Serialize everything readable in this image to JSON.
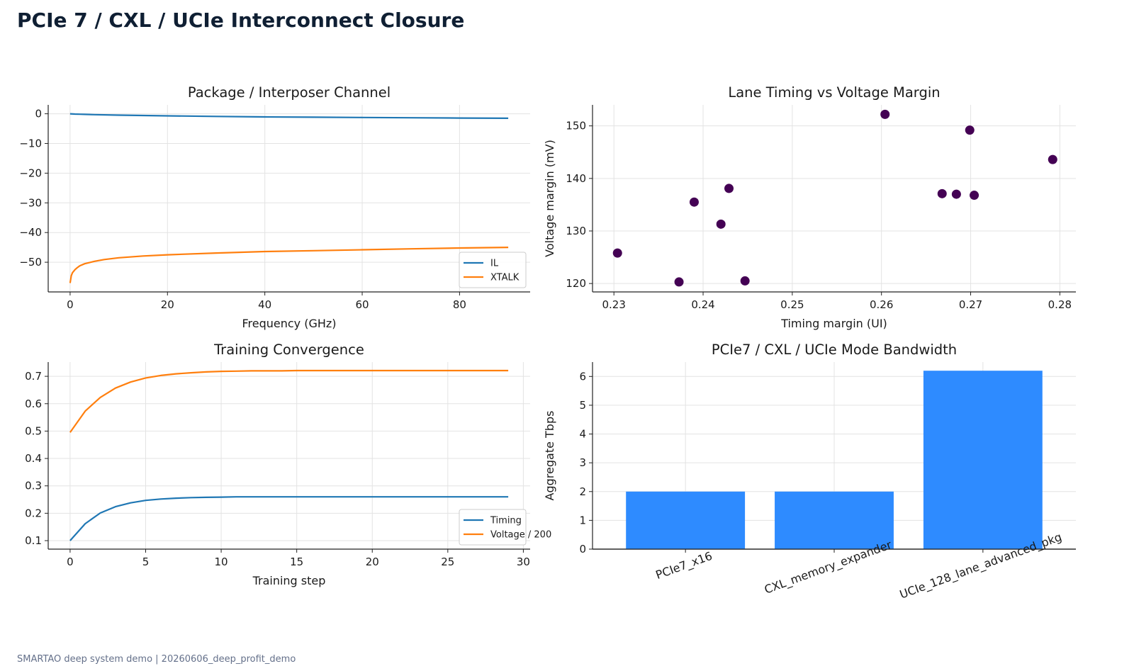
{
  "page": {
    "title": "PCIe 7 / CXL / UCIe Interconnect Closure",
    "footer": "SMARTAO deep system demo | 20260606_deep_profit_demo"
  },
  "colors": {
    "blue": "#1f77b4",
    "orange": "#ff7f0e",
    "purple": "#440154",
    "bar": "#2e8bff"
  },
  "chart_data": [
    {
      "id": "channel",
      "type": "line",
      "title": "Package / Interposer Channel",
      "xlabel": "Frequency (GHz)",
      "ylabel": "",
      "xlim": [
        -4.5,
        94.5
      ],
      "ylim": [
        -60.0,
        3.0
      ],
      "xticks": [
        0,
        20,
        40,
        60,
        80
      ],
      "yticks": [
        0,
        -10,
        -20,
        -30,
        -40,
        -50
      ],
      "grid": true,
      "legend": "bottom-right",
      "series": [
        {
          "name": "IL",
          "color": "#1f77b4",
          "x": [
            0,
            1,
            2,
            3,
            5,
            10,
            20,
            30,
            40,
            50,
            60,
            70,
            80,
            90
          ],
          "y": [
            0,
            -0.1,
            -0.15,
            -0.2,
            -0.3,
            -0.45,
            -0.7,
            -0.9,
            -1.05,
            -1.15,
            -1.25,
            -1.35,
            -1.45,
            -1.5
          ]
        },
        {
          "name": "XTALK",
          "color": "#ff7f0e",
          "x": [
            0,
            0.25,
            0.5,
            1,
            1.5,
            2,
            3,
            5,
            7,
            10,
            15,
            20,
            30,
            40,
            50,
            60,
            70,
            80,
            90
          ],
          "y": [
            -57,
            -54.5,
            -53.5,
            -52.5,
            -51.8,
            -51.2,
            -50.5,
            -49.7,
            -49.1,
            -48.5,
            -47.9,
            -47.5,
            -46.9,
            -46.4,
            -46.1,
            -45.8,
            -45.5,
            -45.2,
            -45.0
          ]
        }
      ]
    },
    {
      "id": "margin",
      "type": "scatter",
      "title": "Lane Timing vs Voltage Margin",
      "xlabel": "Timing margin (UI)",
      "ylabel": "Voltage margin (mV)",
      "xlim": [
        0.2276,
        0.2818
      ],
      "ylim": [
        118.4,
        154.0
      ],
      "xticks": [
        0.23,
        0.24,
        0.25,
        0.26,
        0.27,
        0.28
      ],
      "yticks": [
        120,
        130,
        140,
        150
      ],
      "grid": true,
      "series": [
        {
          "name": "",
          "color": "#440154",
          "x": [
            0.2304,
            0.2373,
            0.239,
            0.242,
            0.2429,
            0.2447,
            0.2604,
            0.2668,
            0.2684,
            0.2699,
            0.2704,
            0.2792
          ],
          "y": [
            125.8,
            120.3,
            135.5,
            131.3,
            138.1,
            120.5,
            152.2,
            137.1,
            137.0,
            149.2,
            136.8,
            143.6
          ]
        }
      ]
    },
    {
      "id": "training",
      "type": "line",
      "title": "Training Convergence",
      "xlabel": "Training step",
      "ylabel": "",
      "xlim": [
        -1.45,
        30.45
      ],
      "ylim": [
        0.069,
        0.752
      ],
      "xticks": [
        0,
        5,
        10,
        15,
        20,
        25,
        30
      ],
      "yticks": [
        0.1,
        0.2,
        0.3,
        0.4,
        0.5,
        0.6,
        0.7
      ],
      "grid": true,
      "legend": "bottom-right",
      "series": [
        {
          "name": "Timing",
          "color": "#1f77b4",
          "x": [
            0,
            1,
            2,
            3,
            4,
            5,
            6,
            7,
            8,
            9,
            10,
            11,
            12,
            13,
            14,
            15,
            16,
            17,
            18,
            19,
            20,
            21,
            22,
            23,
            24,
            25,
            26,
            27,
            28,
            29
          ],
          "y": [
            0.1,
            0.162,
            0.201,
            0.224,
            0.238,
            0.247,
            0.252,
            0.255,
            0.257,
            0.258,
            0.259,
            0.26,
            0.26,
            0.26,
            0.26,
            0.26,
            0.26,
            0.26,
            0.26,
            0.26,
            0.26,
            0.26,
            0.26,
            0.26,
            0.26,
            0.26,
            0.26,
            0.26,
            0.26,
            0.26
          ]
        },
        {
          "name": "Voltage / 200",
          "color": "#ff7f0e",
          "x": [
            0,
            1,
            2,
            3,
            4,
            5,
            6,
            7,
            8,
            9,
            10,
            11,
            12,
            13,
            14,
            15,
            16,
            17,
            18,
            19,
            20,
            21,
            22,
            23,
            24,
            25,
            26,
            27,
            28,
            29
          ],
          "y": [
            0.495,
            0.573,
            0.623,
            0.657,
            0.679,
            0.694,
            0.703,
            0.709,
            0.713,
            0.716,
            0.718,
            0.719,
            0.72,
            0.72,
            0.72,
            0.721,
            0.721,
            0.721,
            0.721,
            0.721,
            0.721,
            0.721,
            0.721,
            0.721,
            0.721,
            0.721,
            0.721,
            0.721,
            0.721,
            0.721
          ]
        }
      ]
    },
    {
      "id": "bandwidth",
      "type": "bar",
      "title": "PCIe7 / CXL / UCIe Mode Bandwidth",
      "xlabel": "",
      "ylabel": "Aggregate Tbps",
      "ylim": [
        0,
        6.5
      ],
      "yticks": [
        0,
        1,
        2,
        3,
        4,
        5,
        6
      ],
      "grid": true,
      "color": "#2e8bff",
      "categories": [
        "PCIe7_x16",
        "CXL_memory_expander",
        "UCIe_128_lane_advanced_pkg"
      ],
      "values": [
        2.0,
        2.0,
        6.2
      ]
    }
  ]
}
